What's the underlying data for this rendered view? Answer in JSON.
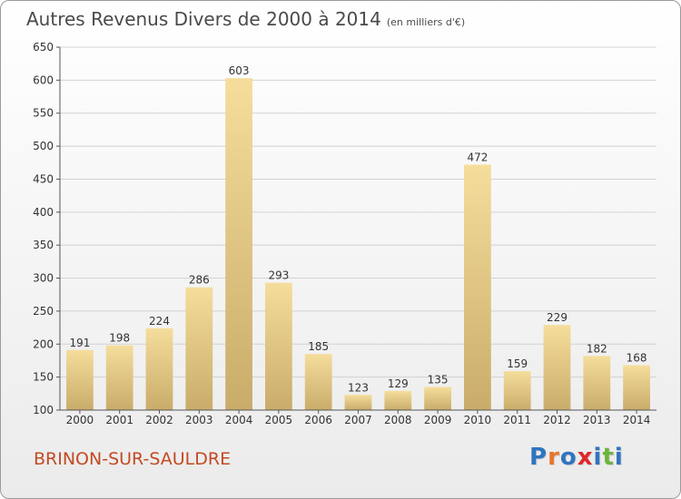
{
  "header": {
    "title": "Autres Revenus Divers de 2000 à 2014",
    "unit": "(en milliers d'€)"
  },
  "footer": {
    "place_name": "BRINON-SUR-SAULDRE",
    "logo_text": "Proxiti",
    "logo_colors": [
      "#2f74c0",
      "#e8742a",
      "#2f74c0",
      "#e0282a",
      "#2f74c0",
      "#6cb33f",
      "#2f74c0"
    ]
  },
  "colors": {
    "bar_light": "#f5dd9c",
    "bar_dark": "#c9ac6a",
    "grid": "#d2d2d2",
    "axis": "#555555",
    "text": "#333333"
  },
  "chart_data": {
    "type": "bar",
    "title": "Autres Revenus Divers de 2000 à 2014",
    "categories": [
      "2000",
      "2001",
      "2002",
      "2003",
      "2004",
      "2005",
      "2006",
      "2007",
      "2008",
      "2009",
      "2010",
      "2011",
      "2012",
      "2013",
      "2014"
    ],
    "values": [
      191,
      198,
      224,
      286,
      603,
      293,
      185,
      123,
      129,
      135,
      472,
      159,
      229,
      182,
      168
    ],
    "ylim": [
      100,
      650
    ],
    "yticks": [
      100,
      150,
      200,
      250,
      300,
      350,
      400,
      450,
      500,
      550,
      600,
      650
    ],
    "grid": true,
    "data_labels": true
  }
}
